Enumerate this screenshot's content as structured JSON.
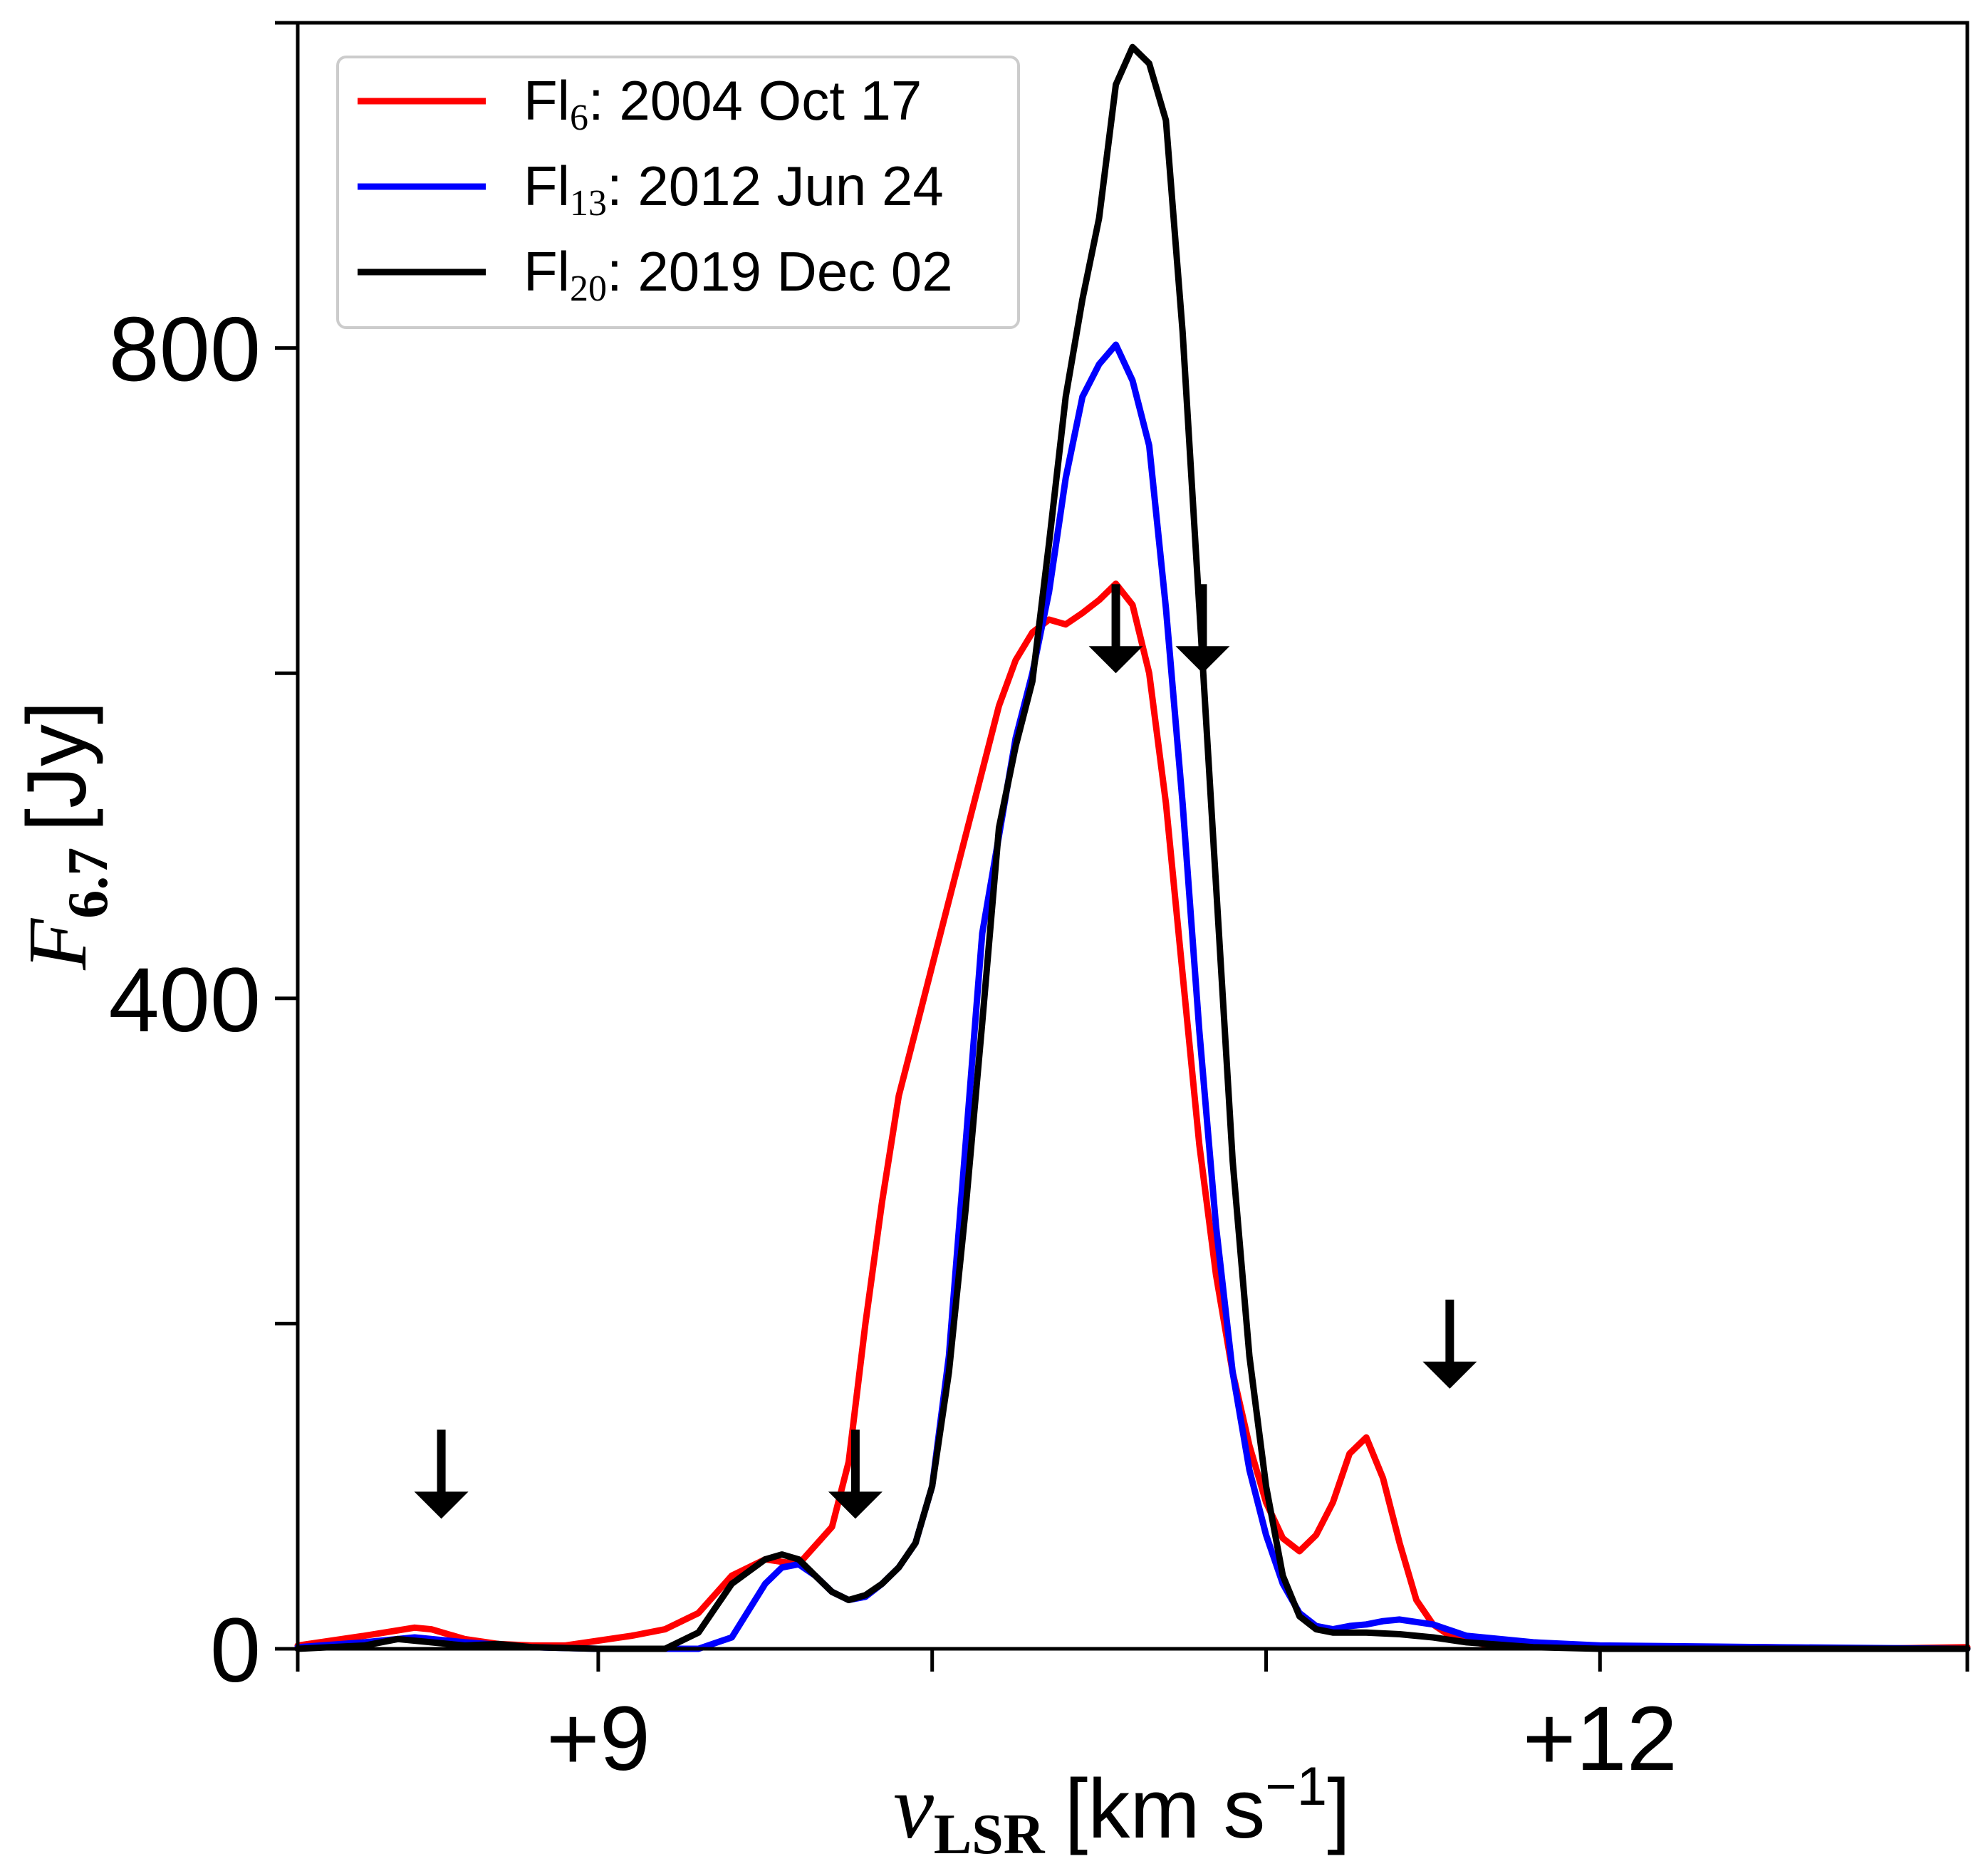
{
  "chart_data": {
    "type": "line",
    "title": "",
    "xlabel": {
      "symbol": "v",
      "subscript": "LSR",
      "units": "[km s",
      "exp": "−1",
      "close": "]"
    },
    "ylabel": {
      "symbol": "F",
      "subscript": "6.7",
      "units": "[Jy]"
    },
    "xlim": [
      8.1,
      13.1
    ],
    "ylim": [
      0,
      1000
    ],
    "x_ticks_labeled": [
      {
        "value": 9,
        "label": "+9"
      },
      {
        "value": 12,
        "label": "+12"
      }
    ],
    "x_ticks_minor": [
      8.1,
      10,
      11,
      13.1
    ],
    "y_ticks_labeled": [
      {
        "value": 0,
        "label": "0"
      },
      {
        "value": 400,
        "label": "400"
      },
      {
        "value": 800,
        "label": "800"
      }
    ],
    "y_ticks_minor": [
      200,
      600,
      1000
    ],
    "legend": {
      "position": "top-left",
      "entries": [
        {
          "prefix": "Fl",
          "sub": "6",
          "suffix": ": 2004 Oct 17",
          "color": "#ff0000"
        },
        {
          "prefix": "Fl",
          "sub": "13",
          "suffix": ": 2012 Jun 24",
          "color": "#0000ff"
        },
        {
          "prefix": "Fl",
          "sub": "20",
          "suffix": ": 2019 Dec 02",
          "color": "#000000"
        }
      ]
    },
    "series": [
      {
        "name": "Fl6: 2004 Oct 17",
        "color": "#ff0000",
        "x": [
          8.1,
          8.3,
          8.45,
          8.5,
          8.6,
          8.7,
          8.8,
          8.9,
          9.0,
          9.1,
          9.2,
          9.3,
          9.4,
          9.5,
          9.6,
          9.7,
          9.75,
          9.8,
          9.85,
          9.9,
          9.95,
          10.0,
          10.1,
          10.2,
          10.25,
          10.3,
          10.35,
          10.4,
          10.45,
          10.5,
          10.55,
          10.6,
          10.65,
          10.7,
          10.75,
          10.8,
          10.85,
          10.9,
          10.95,
          11.0,
          11.05,
          11.1,
          11.15,
          11.2,
          11.25,
          11.3,
          11.35,
          11.4,
          11.45,
          11.5,
          11.55,
          11.6,
          11.65,
          11.7,
          11.8,
          11.9,
          12.0,
          12.2,
          12.5,
          12.8,
          13.1
        ],
        "y": [
          2,
          8,
          13,
          12,
          6,
          3,
          2,
          2,
          5,
          8,
          12,
          22,
          45,
          55,
          52,
          75,
          115,
          200,
          275,
          340,
          380,
          420,
          500,
          580,
          608,
          625,
          633,
          630,
          637,
          645,
          655,
          642,
          600,
          520,
          415,
          310,
          230,
          170,
          125,
          90,
          68,
          60,
          70,
          90,
          120,
          130,
          105,
          65,
          30,
          15,
          8,
          5,
          3,
          2,
          2,
          1,
          1,
          1,
          1,
          0,
          1
        ]
      },
      {
        "name": "Fl13: 2012 Jun 24",
        "color": "#0000ff",
        "x": [
          8.1,
          8.3,
          8.45,
          8.6,
          8.8,
          9.0,
          9.1,
          9.2,
          9.3,
          9.4,
          9.5,
          9.55,
          9.6,
          9.65,
          9.7,
          9.75,
          9.8,
          9.85,
          9.9,
          9.95,
          10.0,
          10.05,
          10.1,
          10.15,
          10.2,
          10.25,
          10.3,
          10.35,
          10.4,
          10.45,
          10.5,
          10.55,
          10.6,
          10.65,
          10.7,
          10.75,
          10.8,
          10.85,
          10.9,
          10.95,
          11.0,
          11.05,
          11.1,
          11.15,
          11.2,
          11.25,
          11.3,
          11.35,
          11.4,
          11.5,
          11.6,
          11.8,
          12.0,
          12.5,
          13.1
        ],
        "y": [
          1,
          4,
          7,
          4,
          1,
          0,
          0,
          0,
          0,
          7,
          40,
          50,
          52,
          45,
          35,
          30,
          32,
          40,
          50,
          65,
          100,
          180,
          310,
          440,
          500,
          560,
          600,
          650,
          720,
          770,
          790,
          802,
          780,
          740,
          640,
          520,
          380,
          260,
          170,
          110,
          70,
          40,
          22,
          14,
          12,
          14,
          15,
          17,
          18,
          15,
          8,
          4,
          2,
          1,
          0
        ]
      },
      {
        "name": "Fl20: 2019 Dec 02",
        "color": "#000000",
        "x": [
          8.1,
          8.3,
          8.4,
          8.5,
          8.6,
          8.7,
          8.8,
          9.0,
          9.2,
          9.3,
          9.35,
          9.4,
          9.5,
          9.55,
          9.6,
          9.65,
          9.7,
          9.75,
          9.8,
          9.85,
          9.9,
          9.95,
          10.0,
          10.05,
          10.1,
          10.15,
          10.2,
          10.25,
          10.3,
          10.35,
          10.4,
          10.45,
          10.5,
          10.55,
          10.6,
          10.65,
          10.7,
          10.75,
          10.8,
          10.85,
          10.9,
          10.95,
          11.0,
          11.05,
          11.1,
          11.15,
          11.2,
          11.25,
          11.3,
          11.4,
          11.5,
          11.6,
          11.8,
          12.0,
          12.5,
          13.1
        ],
        "y": [
          0,
          2,
          6,
          4,
          2,
          3,
          1,
          0,
          0,
          10,
          25,
          40,
          55,
          58,
          55,
          45,
          35,
          30,
          33,
          40,
          50,
          65,
          100,
          170,
          270,
          385,
          505,
          555,
          595,
          680,
          770,
          830,
          880,
          962,
          985,
          975,
          940,
          810,
          640,
          470,
          300,
          180,
          100,
          45,
          20,
          12,
          10,
          10,
          10,
          9,
          7,
          4,
          1,
          0,
          0,
          0
        ]
      }
    ],
    "arrows": [
      {
        "label": "arrow-1",
        "x": 8.53,
        "tip_y": 80
      },
      {
        "label": "arrow-2",
        "x": 9.77,
        "tip_y": 80
      },
      {
        "label": "arrow-3",
        "x": 10.55,
        "tip_y": 600
      },
      {
        "label": "arrow-4",
        "x": 10.81,
        "tip_y": 600
      },
      {
        "label": "arrow-5",
        "x": 11.55,
        "tip_y": 160
      }
    ]
  }
}
